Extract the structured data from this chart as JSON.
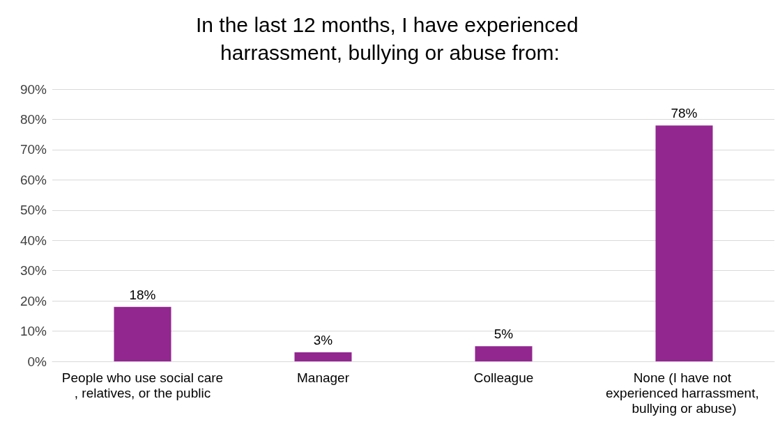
{
  "chart_data": {
    "type": "bar",
    "title": "In the last 12 months, I have experienced harrassment, bullying or abuse from:",
    "categories": [
      "People who use social care, relatives, or the public",
      "Manager",
      "Colleague",
      "None (I have not experienced harrassment, bullying or abuse)"
    ],
    "values": [
      18,
      3,
      5,
      78
    ],
    "color": "#92278f",
    "value_labels": [
      "18%",
      "3%",
      "5%",
      "78%"
    ],
    "ylim": [
      0,
      90
    ],
    "yticks": [
      {
        "value": 0,
        "label": "0%"
      },
      {
        "value": 10,
        "label": "10%"
      },
      {
        "value": 20,
        "label": "20%"
      },
      {
        "value": 30,
        "label": "30%"
      },
      {
        "value": 40,
        "label": "40%"
      },
      {
        "value": 50,
        "label": "50%"
      },
      {
        "value": 60,
        "label": "60%"
      },
      {
        "value": 70,
        "label": "70%"
      },
      {
        "value": 80,
        "label": "80%"
      },
      {
        "value": 90,
        "label": "90%"
      }
    ],
    "grid": "y"
  }
}
